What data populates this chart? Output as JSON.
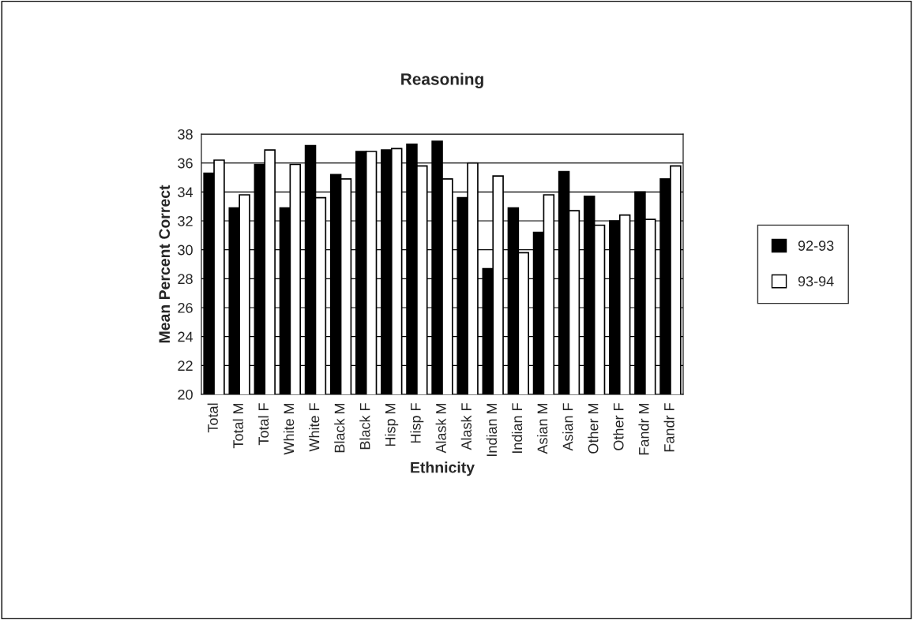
{
  "chart_data": {
    "type": "bar",
    "title": "Reasoning",
    "xlabel": "Ethnicity",
    "ylabel": "Mean Percent Correct",
    "categories": [
      "Total",
      "Total M",
      "Total F",
      "White M",
      "White F",
      "Black M",
      "Black F",
      "Hisp M",
      "Hisp F",
      "Alask M",
      "Alask F",
      "Indian M",
      "Indian F",
      "Asian M",
      "Asian F",
      "Other M",
      "Other F",
      "Fandr M",
      "Fandr F"
    ],
    "series": [
      {
        "name": "92-93",
        "color": "#000000",
        "values": [
          35.3,
          32.9,
          35.9,
          32.9,
          37.2,
          35.2,
          36.8,
          36.9,
          37.3,
          37.5,
          33.6,
          28.7,
          32.9,
          31.2,
          35.4,
          33.7,
          32.0,
          34.0,
          34.9
        ]
      },
      {
        "name": "93-94",
        "color": "#ffffff",
        "values": [
          36.2,
          33.8,
          36.9,
          35.9,
          33.6,
          34.9,
          36.8,
          37.0,
          35.8,
          34.9,
          36.0,
          35.1,
          29.8,
          33.8,
          32.7,
          31.7,
          32.4,
          32.1,
          35.8
        ]
      }
    ],
    "ylim": [
      20,
      38
    ],
    "yticks": [
      20,
      22,
      24,
      26,
      28,
      30,
      32,
      34,
      36,
      38
    ],
    "grid": "y",
    "legend": "right"
  }
}
